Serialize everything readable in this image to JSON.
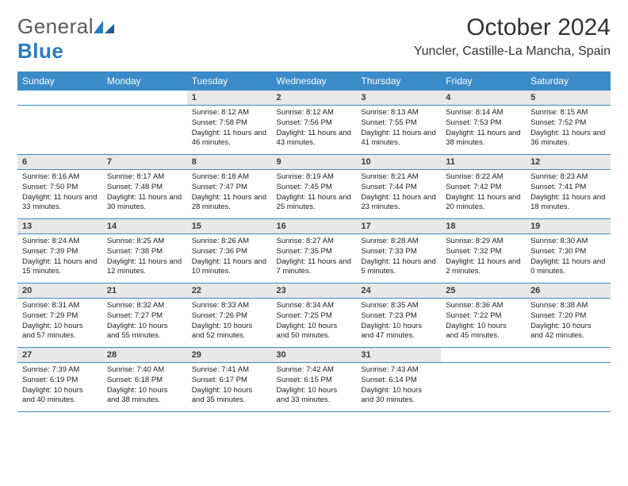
{
  "logo": {
    "word1": "General",
    "word2": "Blue"
  },
  "title": "October 2024",
  "location": "Yuncler, Castille-La Mancha, Spain",
  "colors": {
    "header_bg": "#3b8bc9",
    "header_text": "#ffffff",
    "daynum_bg": "#e8e8e8",
    "border": "#3b8bc9",
    "logo_gray": "#5a5a5a",
    "logo_blue": "#2a7bbf"
  },
  "typography": {
    "title_fontsize": 30,
    "location_fontsize": 16,
    "header_fontsize": 12,
    "daynum_fontsize": 11,
    "cell_fontsize": 9.5
  },
  "day_headers": [
    "Sunday",
    "Monday",
    "Tuesday",
    "Wednesday",
    "Thursday",
    "Friday",
    "Saturday"
  ],
  "weeks": [
    [
      {
        "n": "",
        "sunrise": "",
        "sunset": "",
        "daylight": ""
      },
      {
        "n": "",
        "sunrise": "",
        "sunset": "",
        "daylight": ""
      },
      {
        "n": "1",
        "sunrise": "Sunrise: 8:12 AM",
        "sunset": "Sunset: 7:58 PM",
        "daylight": "Daylight: 11 hours and 46 minutes."
      },
      {
        "n": "2",
        "sunrise": "Sunrise: 8:12 AM",
        "sunset": "Sunset: 7:56 PM",
        "daylight": "Daylight: 11 hours and 43 minutes."
      },
      {
        "n": "3",
        "sunrise": "Sunrise: 8:13 AM",
        "sunset": "Sunset: 7:55 PM",
        "daylight": "Daylight: 11 hours and 41 minutes."
      },
      {
        "n": "4",
        "sunrise": "Sunrise: 8:14 AM",
        "sunset": "Sunset: 7:53 PM",
        "daylight": "Daylight: 11 hours and 38 minutes."
      },
      {
        "n": "5",
        "sunrise": "Sunrise: 8:15 AM",
        "sunset": "Sunset: 7:52 PM",
        "daylight": "Daylight: 11 hours and 36 minutes."
      }
    ],
    [
      {
        "n": "6",
        "sunrise": "Sunrise: 8:16 AM",
        "sunset": "Sunset: 7:50 PM",
        "daylight": "Daylight: 11 hours and 33 minutes."
      },
      {
        "n": "7",
        "sunrise": "Sunrise: 8:17 AM",
        "sunset": "Sunset: 7:48 PM",
        "daylight": "Daylight: 11 hours and 30 minutes."
      },
      {
        "n": "8",
        "sunrise": "Sunrise: 8:18 AM",
        "sunset": "Sunset: 7:47 PM",
        "daylight": "Daylight: 11 hours and 28 minutes."
      },
      {
        "n": "9",
        "sunrise": "Sunrise: 8:19 AM",
        "sunset": "Sunset: 7:45 PM",
        "daylight": "Daylight: 11 hours and 25 minutes."
      },
      {
        "n": "10",
        "sunrise": "Sunrise: 8:21 AM",
        "sunset": "Sunset: 7:44 PM",
        "daylight": "Daylight: 11 hours and 23 minutes."
      },
      {
        "n": "11",
        "sunrise": "Sunrise: 8:22 AM",
        "sunset": "Sunset: 7:42 PM",
        "daylight": "Daylight: 11 hours and 20 minutes."
      },
      {
        "n": "12",
        "sunrise": "Sunrise: 8:23 AM",
        "sunset": "Sunset: 7:41 PM",
        "daylight": "Daylight: 11 hours and 18 minutes."
      }
    ],
    [
      {
        "n": "13",
        "sunrise": "Sunrise: 8:24 AM",
        "sunset": "Sunset: 7:39 PM",
        "daylight": "Daylight: 11 hours and 15 minutes."
      },
      {
        "n": "14",
        "sunrise": "Sunrise: 8:25 AM",
        "sunset": "Sunset: 7:38 PM",
        "daylight": "Daylight: 11 hours and 12 minutes."
      },
      {
        "n": "15",
        "sunrise": "Sunrise: 8:26 AM",
        "sunset": "Sunset: 7:36 PM",
        "daylight": "Daylight: 11 hours and 10 minutes."
      },
      {
        "n": "16",
        "sunrise": "Sunrise: 8:27 AM",
        "sunset": "Sunset: 7:35 PM",
        "daylight": "Daylight: 11 hours and 7 minutes."
      },
      {
        "n": "17",
        "sunrise": "Sunrise: 8:28 AM",
        "sunset": "Sunset: 7:33 PM",
        "daylight": "Daylight: 11 hours and 5 minutes."
      },
      {
        "n": "18",
        "sunrise": "Sunrise: 8:29 AM",
        "sunset": "Sunset: 7:32 PM",
        "daylight": "Daylight: 11 hours and 2 minutes."
      },
      {
        "n": "19",
        "sunrise": "Sunrise: 8:30 AM",
        "sunset": "Sunset: 7:30 PM",
        "daylight": "Daylight: 11 hours and 0 minutes."
      }
    ],
    [
      {
        "n": "20",
        "sunrise": "Sunrise: 8:31 AM",
        "sunset": "Sunset: 7:29 PM",
        "daylight": "Daylight: 10 hours and 57 minutes."
      },
      {
        "n": "21",
        "sunrise": "Sunrise: 8:32 AM",
        "sunset": "Sunset: 7:27 PM",
        "daylight": "Daylight: 10 hours and 55 minutes."
      },
      {
        "n": "22",
        "sunrise": "Sunrise: 8:33 AM",
        "sunset": "Sunset: 7:26 PM",
        "daylight": "Daylight: 10 hours and 52 minutes."
      },
      {
        "n": "23",
        "sunrise": "Sunrise: 8:34 AM",
        "sunset": "Sunset: 7:25 PM",
        "daylight": "Daylight: 10 hours and 50 minutes."
      },
      {
        "n": "24",
        "sunrise": "Sunrise: 8:35 AM",
        "sunset": "Sunset: 7:23 PM",
        "daylight": "Daylight: 10 hours and 47 minutes."
      },
      {
        "n": "25",
        "sunrise": "Sunrise: 8:36 AM",
        "sunset": "Sunset: 7:22 PM",
        "daylight": "Daylight: 10 hours and 45 minutes."
      },
      {
        "n": "26",
        "sunrise": "Sunrise: 8:38 AM",
        "sunset": "Sunset: 7:20 PM",
        "daylight": "Daylight: 10 hours and 42 minutes."
      }
    ],
    [
      {
        "n": "27",
        "sunrise": "Sunrise: 7:39 AM",
        "sunset": "Sunset: 6:19 PM",
        "daylight": "Daylight: 10 hours and 40 minutes."
      },
      {
        "n": "28",
        "sunrise": "Sunrise: 7:40 AM",
        "sunset": "Sunset: 6:18 PM",
        "daylight": "Daylight: 10 hours and 38 minutes."
      },
      {
        "n": "29",
        "sunrise": "Sunrise: 7:41 AM",
        "sunset": "Sunset: 6:17 PM",
        "daylight": "Daylight: 10 hours and 35 minutes."
      },
      {
        "n": "30",
        "sunrise": "Sunrise: 7:42 AM",
        "sunset": "Sunset: 6:15 PM",
        "daylight": "Daylight: 10 hours and 33 minutes."
      },
      {
        "n": "31",
        "sunrise": "Sunrise: 7:43 AM",
        "sunset": "Sunset: 6:14 PM",
        "daylight": "Daylight: 10 hours and 30 minutes."
      },
      {
        "n": "",
        "sunrise": "",
        "sunset": "",
        "daylight": ""
      },
      {
        "n": "",
        "sunrise": "",
        "sunset": "",
        "daylight": ""
      }
    ]
  ]
}
